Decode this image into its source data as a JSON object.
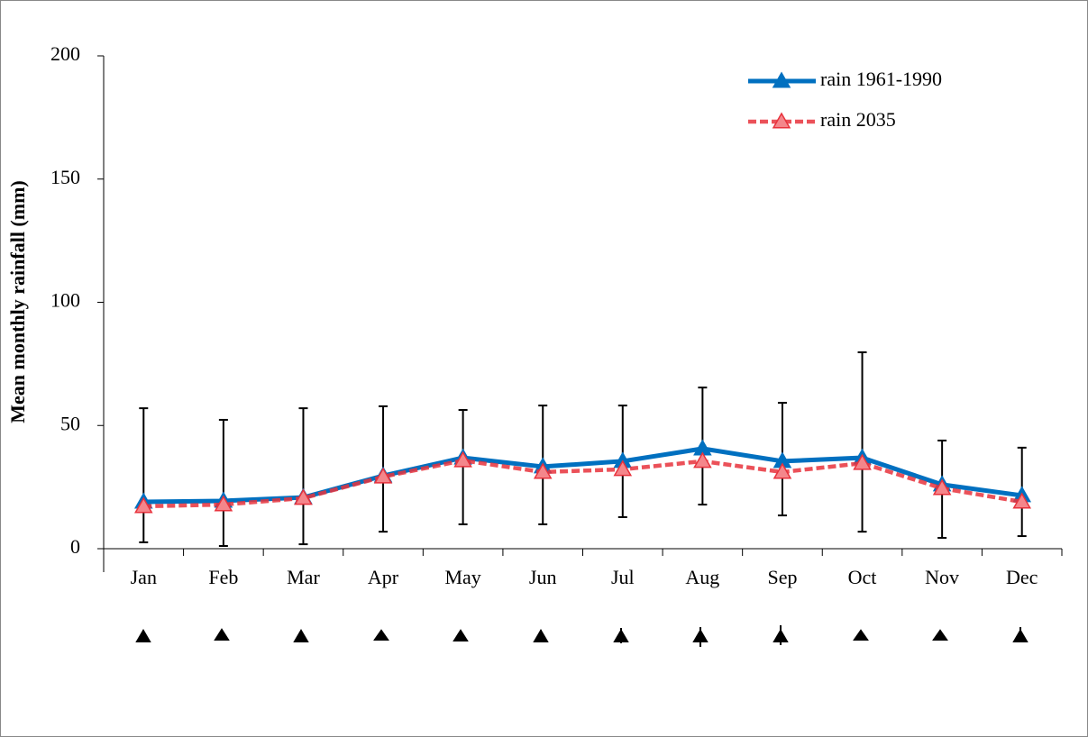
{
  "chart_data": {
    "type": "line",
    "y_label": "Mean monthly rainfall (mm)",
    "categories": [
      "Jan",
      "Feb",
      "Mar",
      "Apr",
      "May",
      "Jun",
      "Jul",
      "Aug",
      "Sep",
      "Oct",
      "Nov",
      "Dec"
    ],
    "series": [
      {
        "name": "rain 1961-1990",
        "color": "#0070c0",
        "line_style": "solid",
        "marker": "triangle",
        "values": [
          19.0,
          19.4,
          20.8,
          29.6,
          36.9,
          33.3,
          35.5,
          40.6,
          35.5,
          36.9,
          26.0,
          21.6
        ],
        "error_plus": [
          38.0,
          32.9,
          36.2,
          28.2,
          19.4,
          24.8,
          22.6,
          24.8,
          23.7,
          42.8,
          17.9,
          19.4
        ],
        "error_minus": [
          16.4,
          18.3,
          19.0,
          22.7,
          27.0,
          23.4,
          22.7,
          22.7,
          22.0,
          30.0,
          21.6,
          16.5
        ]
      },
      {
        "name": "rain 2035",
        "color": "#e8323c",
        "line_style": "dashed",
        "marker": "triangle",
        "values": [
          17.2,
          17.9,
          20.5,
          29.2,
          35.8,
          31.1,
          32.2,
          35.5,
          31.1,
          34.7,
          24.5,
          19.0
        ]
      }
    ],
    "ylim": [
      0,
      200
    ],
    "yticks": [
      0,
      50,
      100,
      150,
      200
    ],
    "grid": false,
    "legend": "upper right"
  }
}
